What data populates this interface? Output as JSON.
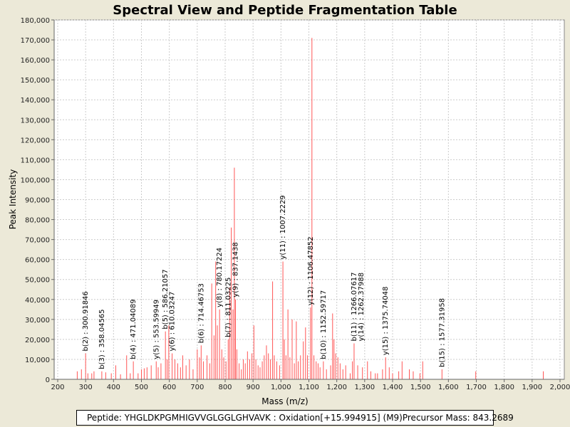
{
  "chart_data": {
    "type": "bar",
    "title": "Spectral View and Peptide Fragmentation Table",
    "xlabel": "Mass (m/z)",
    "ylabel": "Peak Intensity",
    "xlim": [
      200,
      2000
    ],
    "ylim": [
      0,
      180000
    ],
    "x_ticks": [
      200,
      300,
      400,
      500,
      600,
      700,
      800,
      900,
      1000,
      1100,
      1200,
      1300,
      1400,
      1500,
      1600,
      1700,
      1800,
      1900,
      2000
    ],
    "x_tick_labels": [
      "200",
      "300",
      "400",
      "500",
      "600",
      "700",
      "800",
      "900",
      "1,000",
      "1,100",
      "1,200",
      "1,300",
      "1,400",
      "1,500",
      "1,600",
      "1,700",
      "1,800",
      "1,900",
      "2,000"
    ],
    "y_ticks": [
      0,
      10000,
      20000,
      30000,
      40000,
      50000,
      60000,
      70000,
      80000,
      90000,
      100000,
      110000,
      120000,
      130000,
      140000,
      150000,
      160000,
      170000,
      180000
    ],
    "y_tick_labels": [
      "0",
      "10,000",
      "20,000",
      "30,000",
      "40,000",
      "50,000",
      "60,000",
      "70,000",
      "80,000",
      "90,000",
      "100,000",
      "110,000",
      "120,000",
      "130,000",
      "140,000",
      "150,000",
      "160,000",
      "170,000",
      "180,000"
    ],
    "grid": true,
    "peak_color": "#ff5555",
    "peaks": [
      [
        270,
        4000
      ],
      [
        285,
        5000
      ],
      [
        300,
        13000
      ],
      [
        308,
        3000
      ],
      [
        322,
        3000
      ],
      [
        330,
        4000
      ],
      [
        358,
        4000
      ],
      [
        372,
        3500
      ],
      [
        392,
        3000
      ],
      [
        408,
        7000
      ],
      [
        425,
        2500
      ],
      [
        447,
        12000
      ],
      [
        460,
        3000
      ],
      [
        471,
        9000
      ],
      [
        488,
        3000
      ],
      [
        500,
        5000
      ],
      [
        510,
        5500
      ],
      [
        520,
        6000
      ],
      [
        535,
        7000
      ],
      [
        553,
        9000
      ],
      [
        560,
        6000
      ],
      [
        570,
        8000
      ],
      [
        586,
        24000
      ],
      [
        592,
        10000
      ],
      [
        598,
        27000
      ],
      [
        610,
        13000
      ],
      [
        620,
        10000
      ],
      [
        630,
        8000
      ],
      [
        640,
        6000
      ],
      [
        648,
        12000
      ],
      [
        660,
        7000
      ],
      [
        672,
        10000
      ],
      [
        685,
        5000
      ],
      [
        700,
        15000
      ],
      [
        708,
        11000
      ],
      [
        714,
        17000
      ],
      [
        722,
        9000
      ],
      [
        735,
        12000
      ],
      [
        745,
        8000
      ],
      [
        752,
        48000
      ],
      [
        760,
        22000
      ],
      [
        766,
        59000
      ],
      [
        772,
        27000
      ],
      [
        780,
        35000
      ],
      [
        788,
        15000
      ],
      [
        795,
        11000
      ],
      [
        803,
        9000
      ],
      [
        811,
        20000
      ],
      [
        816,
        46000
      ],
      [
        822,
        76000
      ],
      [
        828,
        35000
      ],
      [
        833,
        106000
      ],
      [
        837,
        40000
      ],
      [
        842,
        15000
      ],
      [
        850,
        8000
      ],
      [
        858,
        5000
      ],
      [
        865,
        10000
      ],
      [
        872,
        8000
      ],
      [
        880,
        14000
      ],
      [
        888,
        10000
      ],
      [
        896,
        13000
      ],
      [
        903,
        27000
      ],
      [
        910,
        10000
      ],
      [
        918,
        7000
      ],
      [
        925,
        6000
      ],
      [
        933,
        9000
      ],
      [
        940,
        12000
      ],
      [
        948,
        17000
      ],
      [
        955,
        13000
      ],
      [
        962,
        10000
      ],
      [
        970,
        49000
      ],
      [
        976,
        12000
      ],
      [
        985,
        9000
      ],
      [
        995,
        7000
      ],
      [
        1007,
        59000
      ],
      [
        1012,
        20000
      ],
      [
        1018,
        12000
      ],
      [
        1025,
        35000
      ],
      [
        1032,
        11000
      ],
      [
        1040,
        30000
      ],
      [
        1048,
        8000
      ],
      [
        1055,
        29000
      ],
      [
        1062,
        9000
      ],
      [
        1070,
        12000
      ],
      [
        1080,
        19000
      ],
      [
        1088,
        26000
      ],
      [
        1095,
        12000
      ],
      [
        1106,
        36000
      ],
      [
        1111,
        171000
      ],
      [
        1118,
        12000
      ],
      [
        1126,
        9000
      ],
      [
        1133,
        8000
      ],
      [
        1140,
        6000
      ],
      [
        1152,
        9000
      ],
      [
        1163,
        5000
      ],
      [
        1178,
        7000
      ],
      [
        1185,
        33000
      ],
      [
        1190,
        20000
      ],
      [
        1196,
        13000
      ],
      [
        1204,
        11000
      ],
      [
        1212,
        8000
      ],
      [
        1222,
        5000
      ],
      [
        1232,
        7000
      ],
      [
        1248,
        3000
      ],
      [
        1256,
        9000
      ],
      [
        1262,
        18000
      ],
      [
        1275,
        7000
      ],
      [
        1292,
        6000
      ],
      [
        1310,
        9000
      ],
      [
        1322,
        4000
      ],
      [
        1338,
        3000
      ],
      [
        1346,
        3000
      ],
      [
        1364,
        5000
      ],
      [
        1375,
        11000
      ],
      [
        1388,
        6000
      ],
      [
        1400,
        3000
      ],
      [
        1422,
        4000
      ],
      [
        1434,
        9000
      ],
      [
        1460,
        5000
      ],
      [
        1474,
        4000
      ],
      [
        1498,
        3000
      ],
      [
        1508,
        9000
      ],
      [
        1577,
        5000
      ],
      [
        1698,
        4000
      ],
      [
        1940,
        4000
      ]
    ],
    "annotations": [
      {
        "label": "b(2) : 300.91846",
        "x": 300,
        "y": 13000
      },
      {
        "label": "b(3) : 358.04565",
        "x": 358,
        "y": 4000
      },
      {
        "label": "b(4) : 471.04089",
        "x": 471,
        "y": 9000
      },
      {
        "label": "y(5) : 553.59949",
        "x": 553,
        "y": 9000
      },
      {
        "label": "b(5) : 586.21057",
        "x": 586,
        "y": 24000
      },
      {
        "label": "y(6) : 610.03247",
        "x": 610,
        "y": 13000
      },
      {
        "label": "b(6) : 714.46753",
        "x": 714,
        "y": 17000
      },
      {
        "label": "y(8) : 780.17224",
        "x": 780,
        "y": 35000
      },
      {
        "label": "b(7) : 811.03225",
        "x": 811,
        "y": 20000
      },
      {
        "label": "y(9) : 837.1438",
        "x": 837,
        "y": 40000
      },
      {
        "label": "y(11) : 1007.2229",
        "x": 1007,
        "y": 59000
      },
      {
        "label": "y(12) : 1106.47852",
        "x": 1106,
        "y": 36000
      },
      {
        "label": "b(10) : 1152.59717",
        "x": 1152,
        "y": 9000
      },
      {
        "label": "b(11) : 1266.07617",
        "x": 1262,
        "y": 18000
      },
      {
        "label": "y(14) : 1262.37988",
        "x": 1262,
        "y": 18000
      },
      {
        "label": "y(15) : 1375.74048",
        "x": 1375,
        "y": 11000
      },
      {
        "label": "b(15) : 1577.31958",
        "x": 1577,
        "y": 5000
      }
    ]
  },
  "footer": {
    "peptide": "Peptide: YHGLDKPGMHIGVVGLGGLGHVAVK : Oxidation[+15.994915] (M9)",
    "precursor": "Precursor Mass: 843.2689"
  }
}
